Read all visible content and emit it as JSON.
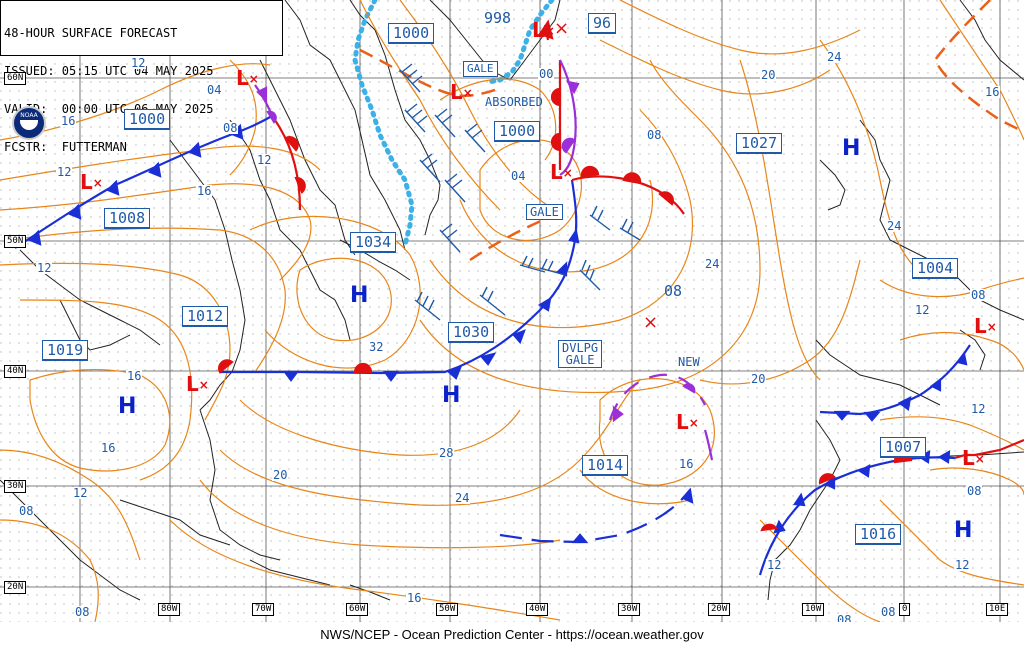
{
  "header": {
    "line1": "48-HOUR SURFACE FORECAST",
    "line2": "ISSUED: 05:15 UTC 04 MAY 2025",
    "line3": "VALID:  00:00 UTC 06 MAY 2025",
    "line4": "FCSTR:  FUTTERMAN"
  },
  "logo": {
    "name": "NOAA"
  },
  "footer": {
    "text": "NWS/NCEP - Ocean Prediction Center - https://ocean.weather.gov"
  },
  "lat_labels": [
    "60N",
    "50N",
    "40N",
    "30N",
    "20N"
  ],
  "lon_labels": [
    "80W",
    "70W",
    "60W",
    "50W",
    "40W",
    "30W",
    "20W",
    "10W",
    "0",
    "10E"
  ],
  "pressure_labels": {
    "p998": "998",
    "p96": "96",
    "p1000a": "1000",
    "p1000b": "1000",
    "p1000c": "1000",
    "p1027": "1027",
    "p1008": "1008",
    "p1034": "1034",
    "p1004": "1004",
    "p1012": "1012",
    "p1019": "1019",
    "p1030": "1030",
    "p1014": "1014",
    "p1007": "1007",
    "p1016": "1016",
    "p08": "08"
  },
  "notes": {
    "gale1": "GALE",
    "absorbed": "ABSORBED",
    "gale2": "GALE",
    "dvlpg1": "DVLPG",
    "dvlpg2": "GALE",
    "new": "NEW"
  },
  "isobar_labels": {
    "i12a": "12",
    "i04a": "04",
    "i16a": "16",
    "i08a": "08",
    "i12b": "12",
    "i16b": "16",
    "i12c": "12",
    "i00": "00",
    "i08b": "08",
    "i04b": "04",
    "i20a": "20",
    "i24a": "24",
    "i16c": "16",
    "i24b": "24",
    "i24c": "24",
    "i12d": "12",
    "i08c": "08",
    "i32": "32",
    "i16d": "16",
    "i16e": "16",
    "i20b": "20",
    "i28": "28",
    "i24d": "24",
    "i12e": "12",
    "i08d": "08",
    "i20c": "20",
    "i16f": "16",
    "i12f": "12",
    "i08e": "08",
    "i12g": "12",
    "i12h": "12",
    "i08f": "08",
    "i08g": "08",
    "i16g": "16",
    "i08h": "08",
    "i04c": "04"
  },
  "symbols": {
    "high": "H",
    "low": "L",
    "cross": "×"
  },
  "colors": {
    "isobar": "#e8861a",
    "cold_front": "#1a2fd6",
    "warm_front": "#e01010",
    "occluded": "#9b30d9",
    "ice_edge": "#3cb0e8",
    "grid": "#000000",
    "land": "#000000",
    "text_blue": "#1f5aa8"
  }
}
